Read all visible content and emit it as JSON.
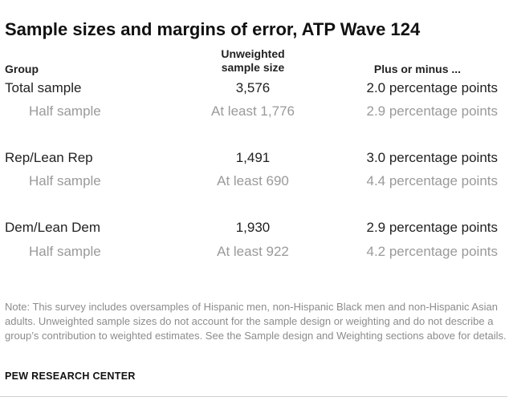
{
  "title": "Sample sizes and margins of error, ATP Wave 124",
  "headers": {
    "group": "Group",
    "size_line1": "Unweighted",
    "size_line2": "sample size",
    "moe": "Plus or minus ..."
  },
  "rows": [
    {
      "group": "Total sample",
      "size": "3,576",
      "moe": "2.0 percentage points",
      "type": "main"
    },
    {
      "group": "Half sample",
      "size": "At least 1,776",
      "moe": "2.9 percentage points",
      "type": "sub"
    },
    {
      "group": "Rep/Lean Rep",
      "size": "1,491",
      "moe": "3.0 percentage points",
      "type": "main"
    },
    {
      "group": "Half sample",
      "size": "At least 690",
      "moe": "4.4 percentage points",
      "type": "sub"
    },
    {
      "group": "Dem/Lean Dem",
      "size": "1,930",
      "moe": "2.9 percentage points",
      "type": "main"
    },
    {
      "group": "Half sample",
      "size": "At least 922",
      "moe": "4.2 percentage points",
      "type": "sub"
    }
  ],
  "note": "Note: This survey includes oversamples of Hispanic men, non-Hispanic Black men and non-Hispanic Asian adults. Unweighted sample sizes do not account for the sample design or weighting and do not describe a group’s contribution to weighted estimates. See the Sample design and Weighting sections above for details.",
  "source": "PEW RESEARCH CENTER",
  "colors": {
    "main_text": "#222222",
    "sub_text": "#9a9a9a",
    "note_text": "#8c8c8c"
  }
}
